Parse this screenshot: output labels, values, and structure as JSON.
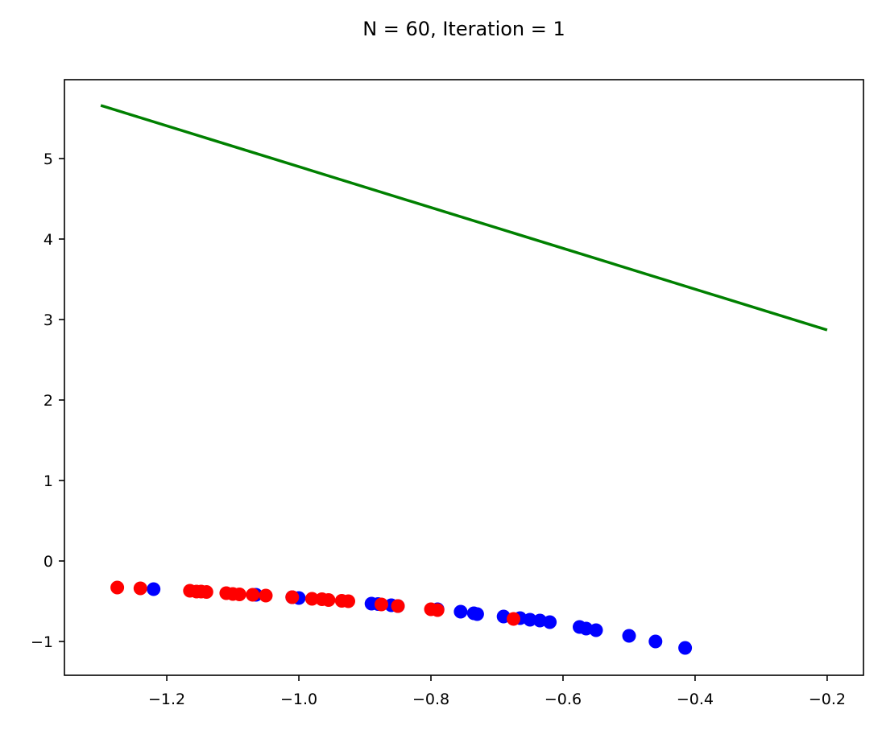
{
  "chart_data": {
    "type": "scatter",
    "title": "N = 60, Iteration = 1",
    "xlabel": "",
    "ylabel": "",
    "xlim": [
      -1.355,
      -0.145
    ],
    "ylim": [
      -1.42,
      5.98
    ],
    "xticks": [
      -1.2,
      -1.0,
      -0.8,
      -0.6,
      -0.4,
      -0.2
    ],
    "xtick_labels": [
      "−1.2",
      "−1.0",
      "−0.8",
      "−0.6",
      "−0.4",
      "−0.2"
    ],
    "yticks": [
      -1,
      0,
      1,
      2,
      3,
      4,
      5
    ],
    "ytick_labels": [
      "−1",
      "0",
      "1",
      "2",
      "3",
      "4",
      "5"
    ],
    "grid": false,
    "line": {
      "color": "#008000",
      "x": [
        -1.3,
        -0.2
      ],
      "y": [
        5.66,
        2.87
      ]
    },
    "series": [
      {
        "color": "#0000ff",
        "x": [
          -1.22,
          -1.065,
          -1.01,
          -1.0,
          -0.89,
          -0.88,
          -0.86,
          -0.85,
          -0.79,
          -0.755,
          -0.735,
          -0.73,
          -0.69,
          -0.665,
          -0.65,
          -0.635,
          -0.62,
          -0.575,
          -0.565,
          -0.55,
          -0.5,
          -0.46,
          -0.415
        ],
        "y": [
          -0.35,
          -0.42,
          -0.45,
          -0.46,
          -0.53,
          -0.535,
          -0.55,
          -0.56,
          -0.6,
          -0.63,
          -0.65,
          -0.66,
          -0.69,
          -0.71,
          -0.73,
          -0.74,
          -0.76,
          -0.82,
          -0.84,
          -0.86,
          -0.93,
          -1.0,
          -1.08
        ]
      },
      {
        "color": "#ff0000",
        "x": [
          -1.275,
          -1.24,
          -1.165,
          -1.155,
          -1.148,
          -1.14,
          -1.11,
          -1.1,
          -1.09,
          -1.07,
          -1.05,
          -1.01,
          -0.98,
          -0.965,
          -0.955,
          -0.935,
          -0.925,
          -0.875,
          -0.85,
          -0.8,
          -0.79,
          -0.675
        ],
        "y": [
          -0.33,
          -0.34,
          -0.37,
          -0.38,
          -0.38,
          -0.385,
          -0.4,
          -0.41,
          -0.415,
          -0.42,
          -0.43,
          -0.45,
          -0.47,
          -0.475,
          -0.485,
          -0.495,
          -0.5,
          -0.54,
          -0.56,
          -0.6,
          -0.61,
          -0.72
        ]
      }
    ]
  }
}
